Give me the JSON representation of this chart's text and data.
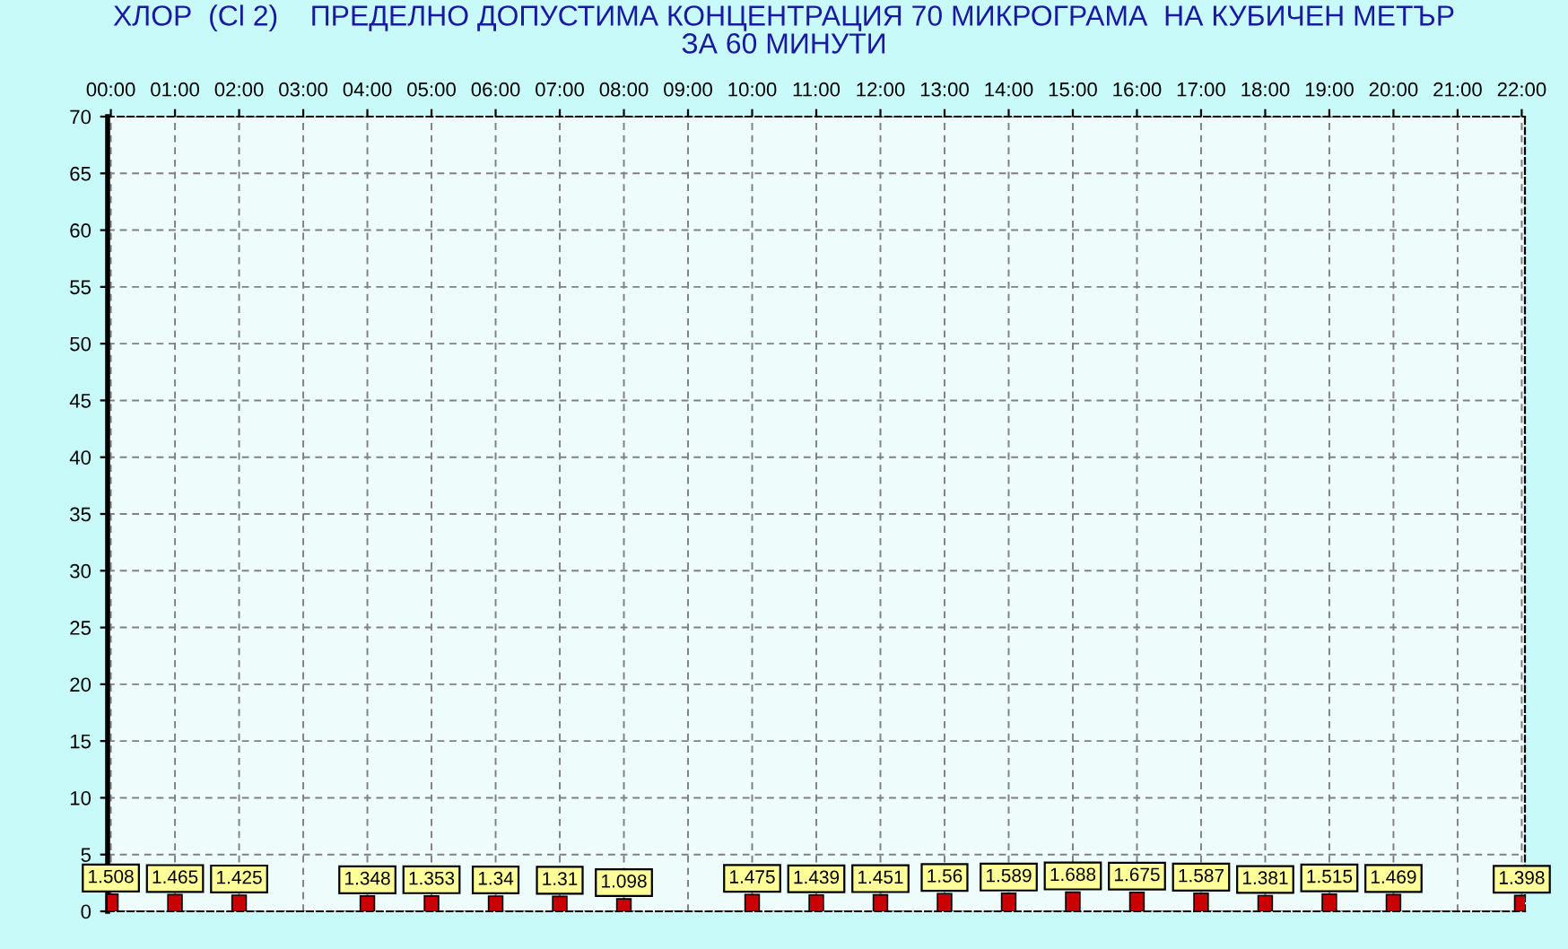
{
  "chart_data": {
    "type": "bar",
    "title": "ХЛОР  (Cl 2)    ПРЕДЕЛНО ДОПУСТИМА КОНЦЕНТРАЦИЯ 70 МИКРОГРАМА  НА КУБИЧЕН МЕТЪР\nЗА 60 МИНУТИ",
    "categories": [
      "00:00",
      "01:00",
      "02:00",
      "03:00",
      "04:00",
      "05:00",
      "06:00",
      "07:00",
      "08:00",
      "09:00",
      "10:00",
      "11:00",
      "12:00",
      "13:00",
      "14:00",
      "15:00",
      "16:00",
      "17:00",
      "18:00",
      "19:00",
      "20:00",
      "21:00",
      "22:00"
    ],
    "series": [
      {
        "color": "#cc0000",
        "values": [
          1.508,
          1.465,
          1.425,
          null,
          1.348,
          1.353,
          1.34,
          1.31,
          1.098,
          null,
          1.475,
          1.439,
          1.451,
          1.56,
          1.589,
          1.688,
          1.675,
          1.587,
          1.381,
          1.515,
          1.469,
          null,
          1.398
        ]
      }
    ],
    "ylim": [
      0,
      70
    ],
    "yticks": [
      0,
      5,
      10,
      15,
      20,
      25,
      30,
      35,
      40,
      45,
      50,
      55,
      60,
      65,
      70
    ],
    "grid": true,
    "data_labels": true
  }
}
